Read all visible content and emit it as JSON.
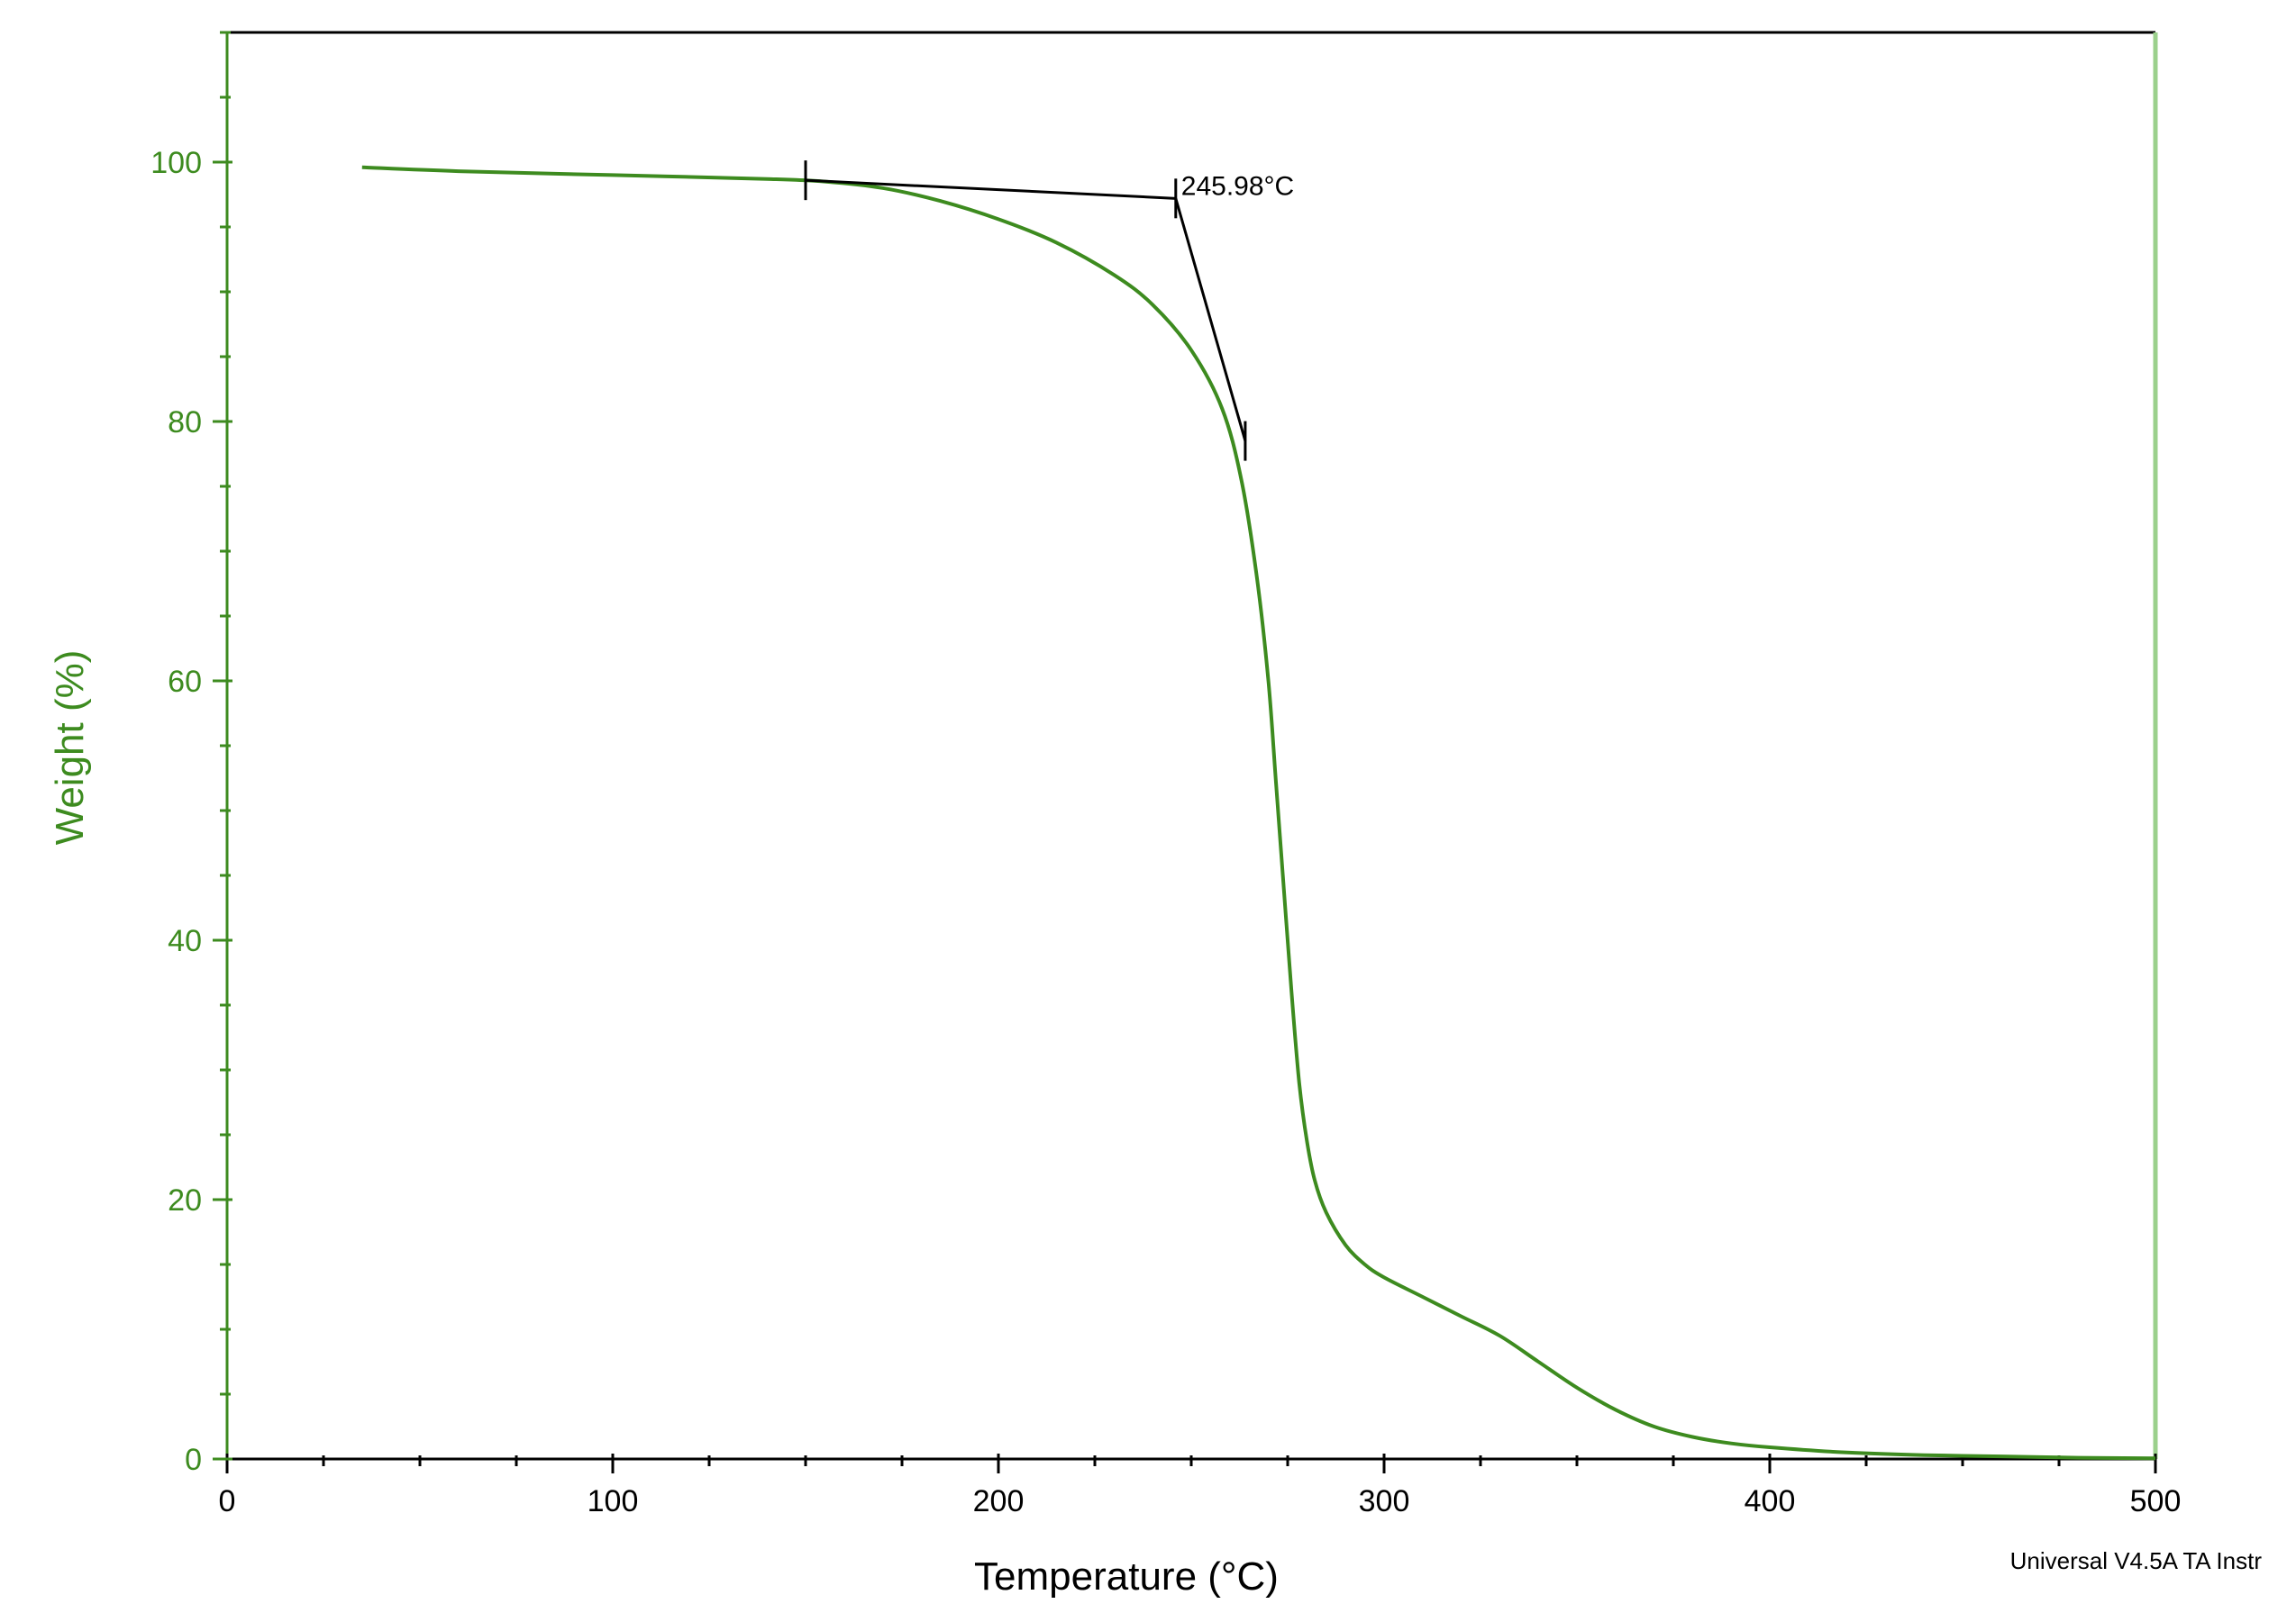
{
  "chart_data": {
    "type": "line",
    "xlabel": "Temperature (°C)",
    "ylabel": "Weight (%)",
    "xlim": [
      0,
      500
    ],
    "ylim": [
      0,
      110
    ],
    "x_ticks": [
      0,
      100,
      200,
      300,
      400,
      500
    ],
    "y_ticks": [
      0,
      20,
      40,
      60,
      80,
      100
    ],
    "x_minor_step": 25,
    "y_minor_step": 5,
    "grid": false,
    "series": [
      {
        "color": "#3d8b1f",
        "x": [
          35,
          60,
          100,
          140,
          155,
          170,
          185,
          200,
          215,
          230,
          240,
          250,
          258,
          263,
          267,
          270,
          272,
          274,
          276,
          278,
          280,
          282,
          285,
          290,
          295,
          300,
          310,
          320,
          330,
          340,
          350,
          360,
          370,
          380,
          390,
          400,
          420,
          440,
          460,
          480,
          500
        ],
        "y": [
          99.6,
          99.3,
          99.0,
          98.7,
          98.5,
          98.0,
          97.0,
          95.6,
          93.8,
          91.3,
          89.0,
          85.5,
          81.0,
          75.5,
          68.0,
          60.0,
          52.0,
          44.0,
          36.0,
          29.0,
          24.5,
          21.5,
          19.0,
          16.5,
          15.0,
          14.0,
          12.5,
          11.0,
          9.5,
          7.5,
          5.5,
          3.8,
          2.5,
          1.7,
          1.2,
          0.9,
          0.5,
          0.3,
          0.2,
          0.1,
          0.05
        ]
      }
    ],
    "annotations": [
      {
        "text": "245.98°C",
        "onset_x": 245.98,
        "onset_y": 97.2,
        "baseline_tangent": [
          [
            150,
            98.6
          ],
          [
            245.98,
            97.2
          ]
        ],
        "slope_tangent": [
          [
            245.98,
            97.2
          ],
          [
            264,
            78.5
          ]
        ]
      }
    ]
  },
  "footer_text": "Universal V4.5A TA Instr",
  "colors": {
    "axis_green": "#3d8b1f",
    "frame": "#000000",
    "right_border": "#9bd08c",
    "annotation": "#000000"
  }
}
